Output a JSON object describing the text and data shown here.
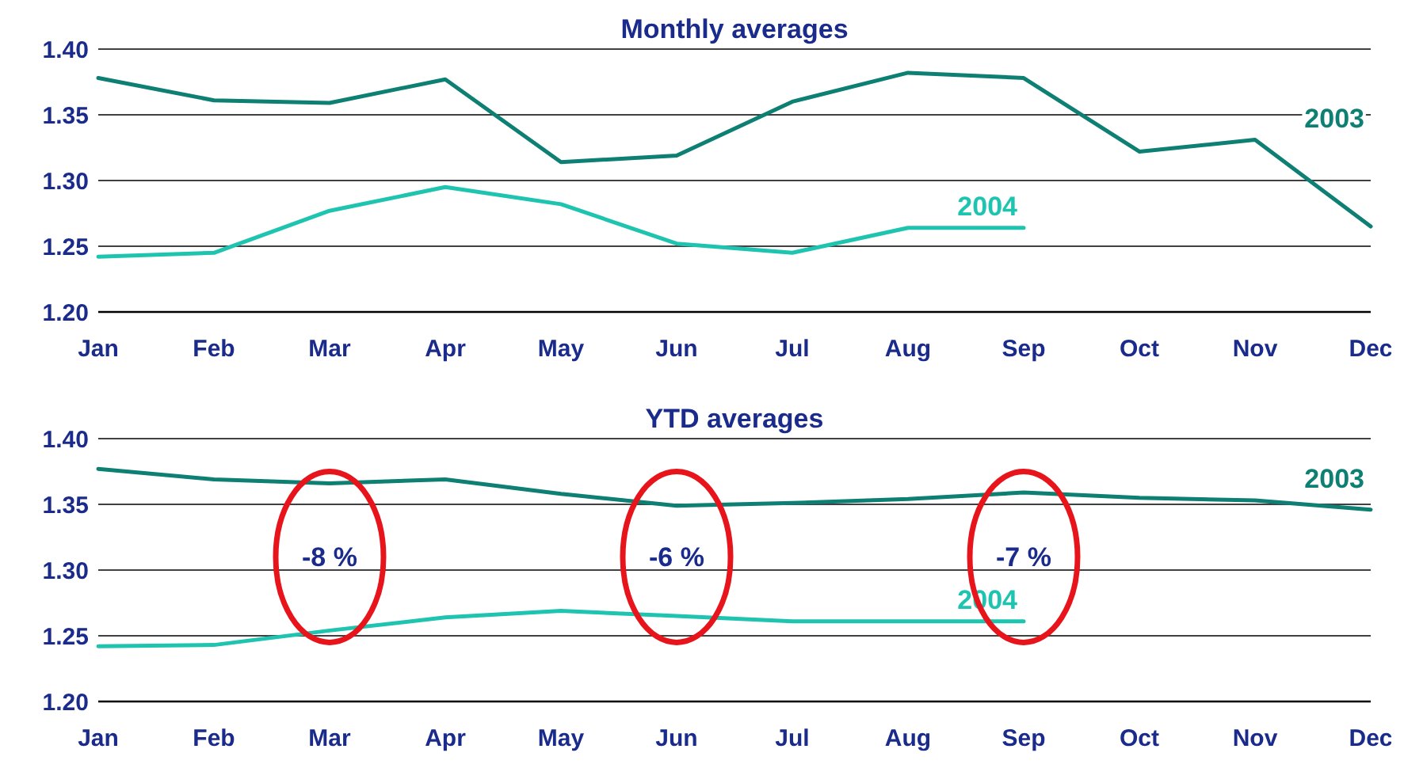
{
  "chart_data": [
    {
      "type": "line",
      "title": "Monthly averages",
      "categories": [
        "Jan",
        "Feb",
        "Mar",
        "Apr",
        "May",
        "Jun",
        "Jul",
        "Aug",
        "Sep",
        "Oct",
        "Nov",
        "Dec"
      ],
      "series": [
        {
          "name": "2003",
          "color": "#0e7f73",
          "values": [
            1.378,
            1.361,
            1.359,
            1.377,
            1.314,
            1.319,
            1.36,
            1.382,
            1.378,
            1.322,
            1.331,
            1.265
          ]
        },
        {
          "name": "2004",
          "color": "#1fc4b0",
          "values": [
            1.242,
            1.245,
            1.277,
            1.295,
            1.282,
            1.252,
            1.245,
            1.264,
            1.264,
            null,
            null,
            null
          ]
        }
      ],
      "ylim": [
        1.2,
        1.4
      ],
      "yticks": [
        {
          "value": 1.2,
          "label": "1.20"
        },
        {
          "value": 1.25,
          "label": "1.25"
        },
        {
          "value": 1.3,
          "label": "1.30"
        },
        {
          "value": 1.35,
          "label": "1.35"
        },
        {
          "value": 1.4,
          "label": "1.40"
        }
      ],
      "grid": "y"
    },
    {
      "type": "line",
      "title": "YTD averages",
      "categories": [
        "Jan",
        "Feb",
        "Mar",
        "Apr",
        "May",
        "Jun",
        "Jul",
        "Aug",
        "Sep",
        "Oct",
        "Nov",
        "Dec"
      ],
      "series": [
        {
          "name": "2003",
          "color": "#0e7f73",
          "values": [
            1.377,
            1.369,
            1.366,
            1.369,
            1.358,
            1.349,
            1.351,
            1.354,
            1.359,
            1.355,
            1.353,
            1.346
          ]
        },
        {
          "name": "2004",
          "color": "#1fc4b0",
          "values": [
            1.242,
            1.243,
            1.254,
            1.264,
            1.269,
            1.265,
            1.261,
            1.261,
            1.261,
            null,
            null,
            null
          ]
        }
      ],
      "ylim": [
        1.2,
        1.4
      ],
      "yticks": [
        {
          "value": 1.2,
          "label": "1.20"
        },
        {
          "value": 1.25,
          "label": "1.25"
        },
        {
          "value": 1.3,
          "label": "1.30"
        },
        {
          "value": 1.35,
          "label": "1.35"
        },
        {
          "value": 1.4,
          "label": "1.40"
        }
      ],
      "grid": "y",
      "annotations": [
        "-8 %",
        "-6 %",
        "-7 %"
      ]
    }
  ]
}
